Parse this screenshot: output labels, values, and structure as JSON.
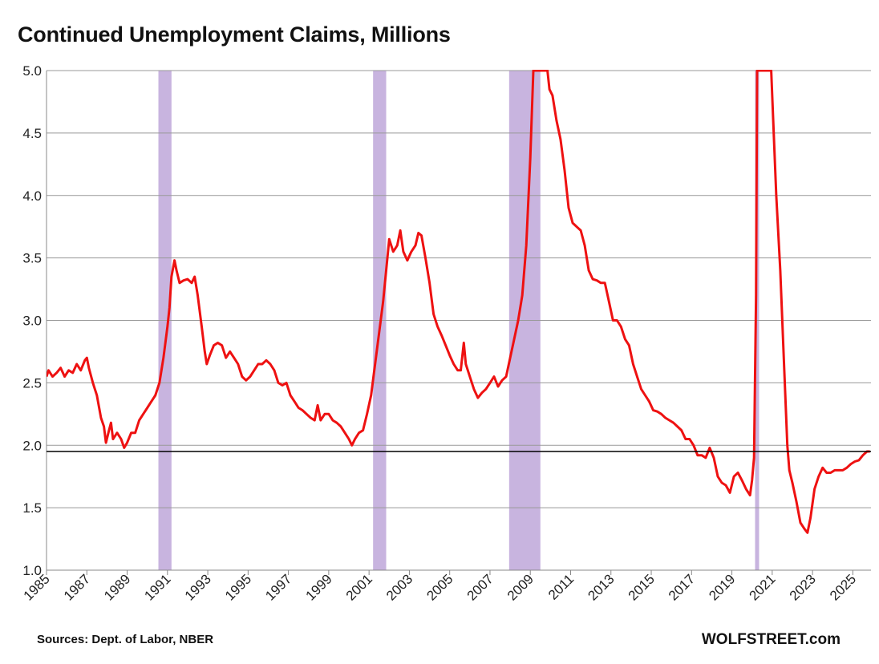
{
  "chart_data": {
    "type": "line",
    "title": "Continued Unemployment Claims, Millions",
    "xlabel": "",
    "ylabel": "",
    "xlim": [
      1985,
      2025.9
    ],
    "ylim": [
      1.0,
      5.0
    ],
    "y_ticks": [
      "1.0",
      "1.5",
      "2.0",
      "2.5",
      "3.0",
      "3.5",
      "4.0",
      "4.5",
      "5.0"
    ],
    "x_ticks": [
      "1985",
      "1987",
      "1989",
      "1991",
      "1993",
      "1995",
      "1997",
      "1999",
      "2001",
      "2003",
      "2005",
      "2007",
      "2009",
      "2011",
      "2013",
      "2015",
      "2017",
      "2019",
      "2021",
      "2023",
      "2025"
    ],
    "grid": "horizontal",
    "line_color": "#ee1111",
    "recession_color": "#c8b4df",
    "reference_line": {
      "y": 1.95,
      "color": "#000000"
    },
    "recessions": [
      {
        "start": 1990.55,
        "end": 1991.2
      },
      {
        "start": 2001.2,
        "end": 2001.85
      },
      {
        "start": 2007.95,
        "end": 2009.5
      },
      {
        "start": 2020.15,
        "end": 2020.35
      }
    ],
    "series": [
      {
        "values": [
          [
            1985.0,
            2.55
          ],
          [
            1985.1,
            2.6
          ],
          [
            1985.3,
            2.55
          ],
          [
            1985.5,
            2.58
          ],
          [
            1985.7,
            2.62
          ],
          [
            1985.9,
            2.55
          ],
          [
            1986.1,
            2.6
          ],
          [
            1986.3,
            2.58
          ],
          [
            1986.5,
            2.65
          ],
          [
            1986.7,
            2.6
          ],
          [
            1986.9,
            2.68
          ],
          [
            1987.0,
            2.7
          ],
          [
            1987.1,
            2.62
          ],
          [
            1987.3,
            2.5
          ],
          [
            1987.5,
            2.4
          ],
          [
            1987.7,
            2.22
          ],
          [
            1987.85,
            2.15
          ],
          [
            1987.95,
            2.02
          ],
          [
            1988.1,
            2.12
          ],
          [
            1988.2,
            2.18
          ],
          [
            1988.3,
            2.05
          ],
          [
            1988.5,
            2.1
          ],
          [
            1988.7,
            2.05
          ],
          [
            1988.85,
            1.98
          ],
          [
            1989.0,
            2.02
          ],
          [
            1989.2,
            2.1
          ],
          [
            1989.4,
            2.1
          ],
          [
            1989.6,
            2.2
          ],
          [
            1989.8,
            2.25
          ],
          [
            1990.0,
            2.3
          ],
          [
            1990.2,
            2.35
          ],
          [
            1990.4,
            2.4
          ],
          [
            1990.6,
            2.5
          ],
          [
            1990.8,
            2.7
          ],
          [
            1991.0,
            2.95
          ],
          [
            1991.1,
            3.1
          ],
          [
            1991.2,
            3.35
          ],
          [
            1991.35,
            3.48
          ],
          [
            1991.45,
            3.4
          ],
          [
            1991.6,
            3.3
          ],
          [
            1991.8,
            3.32
          ],
          [
            1992.0,
            3.33
          ],
          [
            1992.2,
            3.3
          ],
          [
            1992.35,
            3.35
          ],
          [
            1992.5,
            3.2
          ],
          [
            1992.7,
            2.95
          ],
          [
            1992.85,
            2.75
          ],
          [
            1992.95,
            2.65
          ],
          [
            1993.1,
            2.72
          ],
          [
            1993.3,
            2.8
          ],
          [
            1993.5,
            2.82
          ],
          [
            1993.7,
            2.8
          ],
          [
            1993.9,
            2.7
          ],
          [
            1994.1,
            2.75
          ],
          [
            1994.3,
            2.7
          ],
          [
            1994.5,
            2.65
          ],
          [
            1994.7,
            2.55
          ],
          [
            1994.9,
            2.52
          ],
          [
            1995.1,
            2.55
          ],
          [
            1995.3,
            2.6
          ],
          [
            1995.5,
            2.65
          ],
          [
            1995.7,
            2.65
          ],
          [
            1995.9,
            2.68
          ],
          [
            1996.1,
            2.65
          ],
          [
            1996.3,
            2.6
          ],
          [
            1996.5,
            2.5
          ],
          [
            1996.7,
            2.48
          ],
          [
            1996.9,
            2.5
          ],
          [
            1997.1,
            2.4
          ],
          [
            1997.3,
            2.35
          ],
          [
            1997.5,
            2.3
          ],
          [
            1997.7,
            2.28
          ],
          [
            1997.9,
            2.25
          ],
          [
            1998.1,
            2.22
          ],
          [
            1998.3,
            2.2
          ],
          [
            1998.45,
            2.32
          ],
          [
            1998.6,
            2.2
          ],
          [
            1998.8,
            2.25
          ],
          [
            1999.0,
            2.25
          ],
          [
            1999.2,
            2.2
          ],
          [
            1999.4,
            2.18
          ],
          [
            1999.6,
            2.15
          ],
          [
            1999.8,
            2.1
          ],
          [
            2000.0,
            2.05
          ],
          [
            2000.15,
            2.0
          ],
          [
            2000.3,
            2.05
          ],
          [
            2000.5,
            2.1
          ],
          [
            2000.7,
            2.12
          ],
          [
            2000.9,
            2.25
          ],
          [
            2001.1,
            2.4
          ],
          [
            2001.3,
            2.65
          ],
          [
            2001.5,
            2.9
          ],
          [
            2001.7,
            3.15
          ],
          [
            2001.85,
            3.4
          ],
          [
            2002.0,
            3.65
          ],
          [
            2002.2,
            3.55
          ],
          [
            2002.4,
            3.6
          ],
          [
            2002.55,
            3.72
          ],
          [
            2002.7,
            3.55
          ],
          [
            2002.9,
            3.48
          ],
          [
            2003.1,
            3.55
          ],
          [
            2003.3,
            3.6
          ],
          [
            2003.45,
            3.7
          ],
          [
            2003.6,
            3.68
          ],
          [
            2003.8,
            3.5
          ],
          [
            2004.0,
            3.3
          ],
          [
            2004.2,
            3.05
          ],
          [
            2004.4,
            2.95
          ],
          [
            2004.6,
            2.88
          ],
          [
            2004.8,
            2.8
          ],
          [
            2005.0,
            2.72
          ],
          [
            2005.2,
            2.65
          ],
          [
            2005.4,
            2.6
          ],
          [
            2005.55,
            2.6
          ],
          [
            2005.7,
            2.82
          ],
          [
            2005.8,
            2.65
          ],
          [
            2006.0,
            2.55
          ],
          [
            2006.2,
            2.45
          ],
          [
            2006.4,
            2.38
          ],
          [
            2006.6,
            2.42
          ],
          [
            2006.8,
            2.45
          ],
          [
            2007.0,
            2.5
          ],
          [
            2007.2,
            2.55
          ],
          [
            2007.4,
            2.47
          ],
          [
            2007.6,
            2.52
          ],
          [
            2007.8,
            2.55
          ],
          [
            2008.0,
            2.7
          ],
          [
            2008.2,
            2.85
          ],
          [
            2008.4,
            3.0
          ],
          [
            2008.6,
            3.2
          ],
          [
            2008.8,
            3.6
          ],
          [
            2009.0,
            4.3
          ],
          [
            2009.15,
            5.0
          ],
          [
            2009.85,
            5.0
          ],
          [
            2009.95,
            4.85
          ],
          [
            2010.1,
            4.8
          ],
          [
            2010.3,
            4.6
          ],
          [
            2010.5,
            4.45
          ],
          [
            2010.7,
            4.2
          ],
          [
            2010.9,
            3.9
          ],
          [
            2011.1,
            3.78
          ],
          [
            2011.3,
            3.75
          ],
          [
            2011.5,
            3.72
          ],
          [
            2011.7,
            3.6
          ],
          [
            2011.9,
            3.4
          ],
          [
            2012.1,
            3.33
          ],
          [
            2012.3,
            3.32
          ],
          [
            2012.5,
            3.3
          ],
          [
            2012.7,
            3.3
          ],
          [
            2012.9,
            3.15
          ],
          [
            2013.1,
            3.0
          ],
          [
            2013.3,
            3.0
          ],
          [
            2013.5,
            2.95
          ],
          [
            2013.7,
            2.85
          ],
          [
            2013.9,
            2.8
          ],
          [
            2014.1,
            2.65
          ],
          [
            2014.3,
            2.55
          ],
          [
            2014.5,
            2.45
          ],
          [
            2014.7,
            2.4
          ],
          [
            2014.9,
            2.35
          ],
          [
            2015.1,
            2.28
          ],
          [
            2015.3,
            2.27
          ],
          [
            2015.5,
            2.25
          ],
          [
            2015.7,
            2.22
          ],
          [
            2015.9,
            2.2
          ],
          [
            2016.1,
            2.18
          ],
          [
            2016.3,
            2.15
          ],
          [
            2016.5,
            2.12
          ],
          [
            2016.7,
            2.05
          ],
          [
            2016.9,
            2.05
          ],
          [
            2017.1,
            2.0
          ],
          [
            2017.3,
            1.92
          ],
          [
            2017.5,
            1.92
          ],
          [
            2017.7,
            1.9
          ],
          [
            2017.9,
            1.98
          ],
          [
            2018.1,
            1.9
          ],
          [
            2018.3,
            1.75
          ],
          [
            2018.5,
            1.7
          ],
          [
            2018.7,
            1.68
          ],
          [
            2018.9,
            1.62
          ],
          [
            2019.1,
            1.75
          ],
          [
            2019.3,
            1.78
          ],
          [
            2019.5,
            1.72
          ],
          [
            2019.7,
            1.65
          ],
          [
            2019.9,
            1.6
          ],
          [
            2020.0,
            1.72
          ],
          [
            2020.1,
            1.9
          ],
          [
            2020.2,
            3.2
          ],
          [
            2020.25,
            5.0
          ],
          [
            2020.95,
            5.0
          ],
          [
            2021.05,
            4.6
          ],
          [
            2021.2,
            4.0
          ],
          [
            2021.4,
            3.4
          ],
          [
            2021.6,
            2.6
          ],
          [
            2021.75,
            2.0
          ],
          [
            2021.85,
            1.8
          ],
          [
            2022.0,
            1.7
          ],
          [
            2022.2,
            1.55
          ],
          [
            2022.4,
            1.38
          ],
          [
            2022.6,
            1.33
          ],
          [
            2022.75,
            1.3
          ],
          [
            2022.9,
            1.42
          ],
          [
            2023.1,
            1.65
          ],
          [
            2023.3,
            1.75
          ],
          [
            2023.5,
            1.82
          ],
          [
            2023.7,
            1.78
          ],
          [
            2023.9,
            1.78
          ],
          [
            2024.1,
            1.8
          ],
          [
            2024.3,
            1.8
          ],
          [
            2024.5,
            1.8
          ],
          [
            2024.7,
            1.82
          ],
          [
            2024.9,
            1.85
          ],
          [
            2025.1,
            1.87
          ],
          [
            2025.3,
            1.88
          ],
          [
            2025.5,
            1.92
          ],
          [
            2025.7,
            1.95
          ],
          [
            2025.85,
            1.95
          ]
        ]
      }
    ]
  },
  "footer": {
    "source": "Sources: Dept. of Labor, NBER",
    "brand": "WOLFSTREET.com"
  }
}
